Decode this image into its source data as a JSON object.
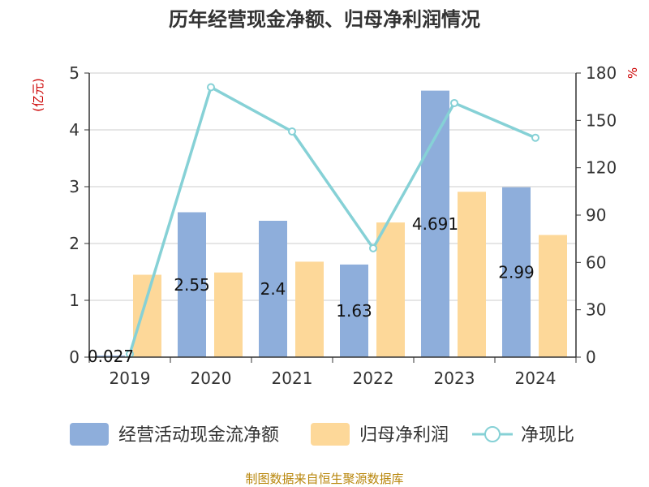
{
  "chart_data": {
    "type": "bar",
    "title": "历年经营现金净额、归母净利润情况",
    "categories": [
      "2019",
      "2020",
      "2021",
      "2022",
      "2023",
      "2024"
    ],
    "series": [
      {
        "name": "经营活动现金流净额",
        "type": "bar",
        "axis": "left",
        "values": [
          0.027,
          2.55,
          2.4,
          1.63,
          4.691,
          2.99
        ],
        "labels": [
          "0.027",
          "2.55",
          "2.4",
          "1.63",
          "4.691",
          "2.99"
        ],
        "color": "#8eaedb"
      },
      {
        "name": "归母净利润",
        "type": "bar",
        "axis": "left",
        "values": [
          1.45,
          1.49,
          1.68,
          2.37,
          2.91,
          2.15
        ],
        "color": "#fdd899"
      },
      {
        "name": "净现比",
        "type": "line",
        "axis": "right",
        "values": [
          2,
          171,
          143,
          69,
          161,
          139
        ],
        "color": "#86d1d6"
      }
    ],
    "y_left": {
      "unit": "(亿元)",
      "ylim": [
        0,
        5
      ],
      "ticks": [
        "0",
        "1",
        "2",
        "3",
        "4",
        "5"
      ]
    },
    "y_right": {
      "unit": "%",
      "ylim": [
        0,
        180
      ],
      "ticks": [
        "0",
        "30",
        "60",
        "90",
        "120",
        "150",
        "180"
      ]
    },
    "grid": true,
    "legend_position": "bottom"
  },
  "source": "制图数据来自恒生聚源数据库"
}
